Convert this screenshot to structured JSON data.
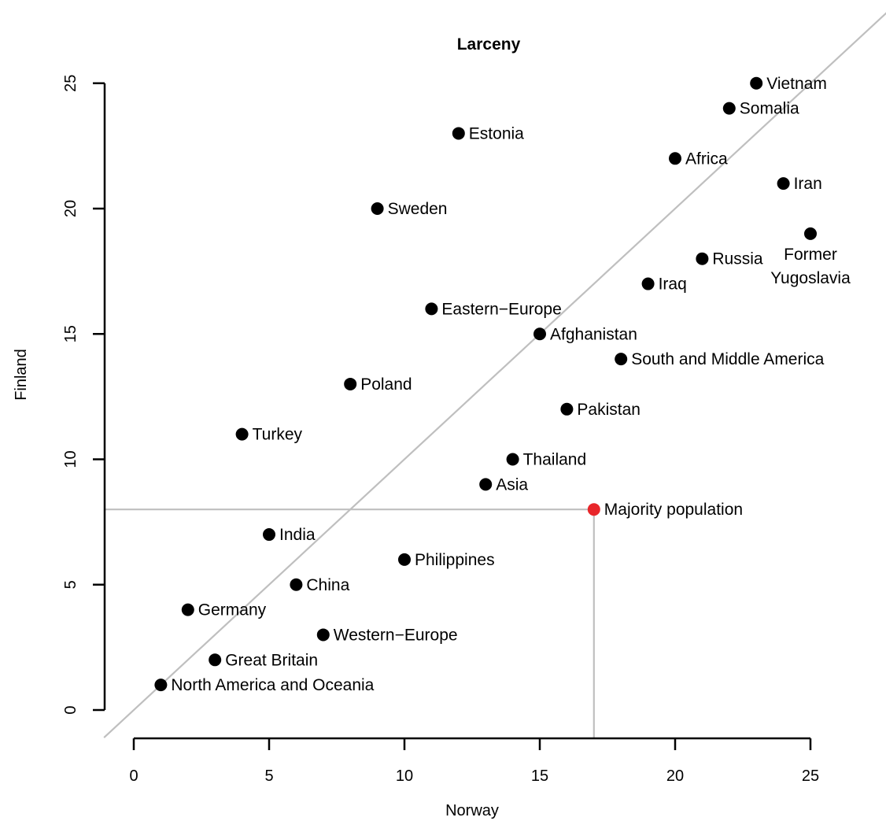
{
  "chart_data": {
    "type": "scatter",
    "title": "Larceny",
    "xlabel": "Norway",
    "ylabel": "Finland",
    "xlim": [
      0,
      25
    ],
    "ylim": [
      0,
      25
    ],
    "xticks": [
      0,
      5,
      10,
      15,
      20,
      25
    ],
    "yticks": [
      0,
      5,
      10,
      15,
      20,
      25
    ],
    "reference_line": "y = x",
    "highlight_color": "#e8262a",
    "point_color": "#000000",
    "line_color": "#bfbfbf",
    "points": [
      {
        "label": "Vietnam",
        "x": 23,
        "y": 25
      },
      {
        "label": "Somalia",
        "x": 22,
        "y": 24
      },
      {
        "label": "Estonia",
        "x": 12,
        "y": 23
      },
      {
        "label": "Africa",
        "x": 20,
        "y": 22
      },
      {
        "label": "Iran",
        "x": 24,
        "y": 21
      },
      {
        "label": "Sweden",
        "x": 9,
        "y": 20
      },
      {
        "label": "Former Yugoslavia",
        "x": 25,
        "y": 19
      },
      {
        "label": "Russia",
        "x": 21,
        "y": 18
      },
      {
        "label": "Iraq",
        "x": 19,
        "y": 17
      },
      {
        "label": "Eastern−Europe",
        "x": 11,
        "y": 16
      },
      {
        "label": "Afghanistan",
        "x": 15,
        "y": 15
      },
      {
        "label": "South and Middle America",
        "x": 18,
        "y": 14
      },
      {
        "label": "Poland",
        "x": 8,
        "y": 13
      },
      {
        "label": "Pakistan",
        "x": 16,
        "y": 12
      },
      {
        "label": "Turkey",
        "x": 4,
        "y": 11
      },
      {
        "label": "Thailand",
        "x": 14,
        "y": 10
      },
      {
        "label": "Asia",
        "x": 13,
        "y": 9
      },
      {
        "label": "Majority population",
        "x": 17,
        "y": 8,
        "highlight": true
      },
      {
        "label": "India",
        "x": 5,
        "y": 7
      },
      {
        "label": "Philippines",
        "x": 10,
        "y": 6
      },
      {
        "label": "China",
        "x": 6,
        "y": 5
      },
      {
        "label": "Germany",
        "x": 2,
        "y": 4
      },
      {
        "label": "Western−Europe",
        "x": 7,
        "y": 3
      },
      {
        "label": "Great Britain",
        "x": 3,
        "y": 2
      },
      {
        "label": "North America and Oceania",
        "x": 1,
        "y": 1
      }
    ]
  }
}
